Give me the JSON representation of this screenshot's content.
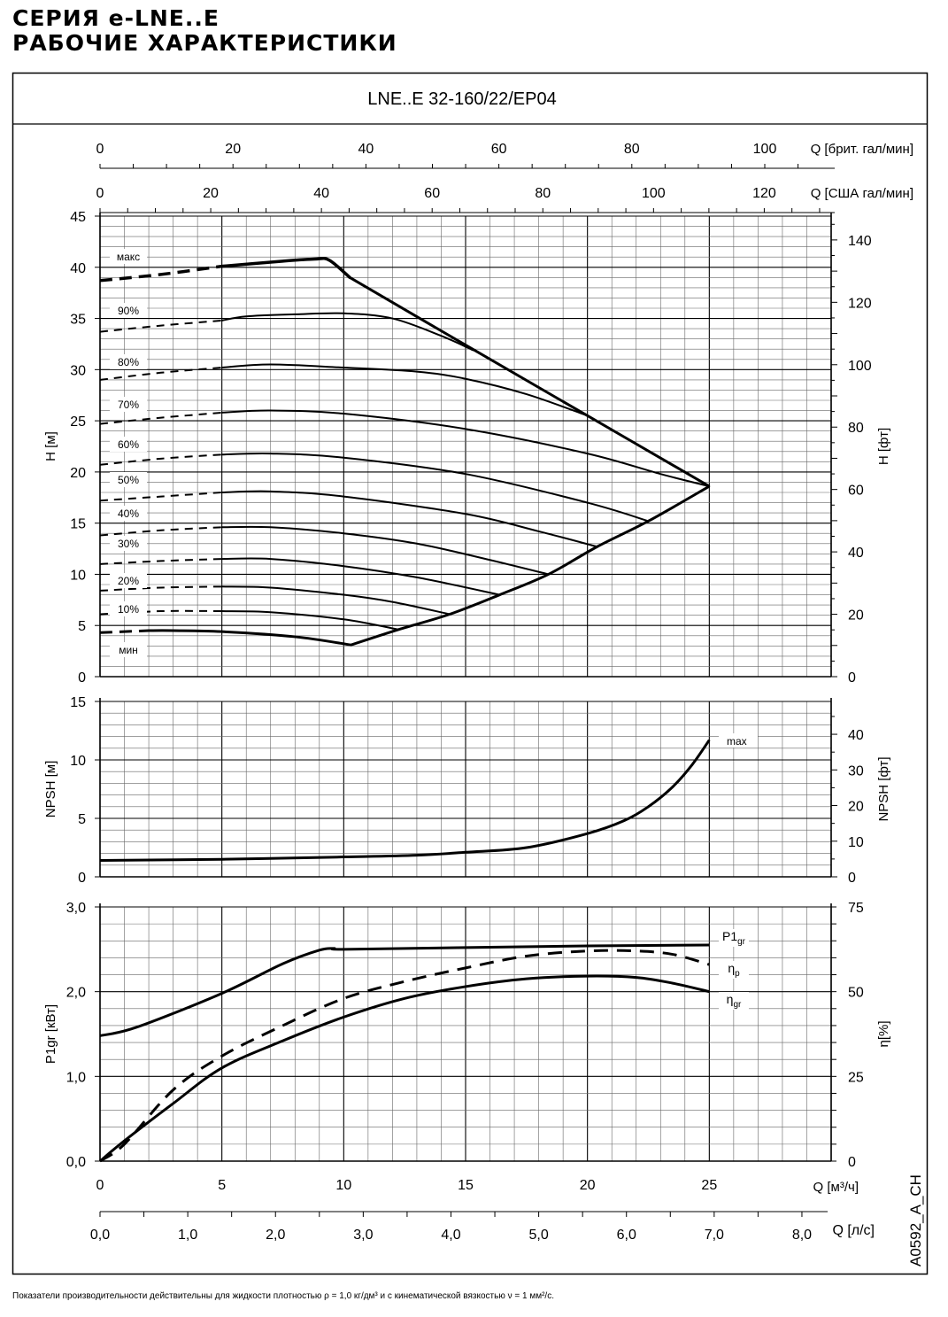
{
  "header": {
    "line1": "СЕРИЯ e-LNE..E",
    "line2": "РАБОЧИЕ ХАРАКТЕРИСТИКИ"
  },
  "model": "LNE..E 32-160/22/EP04",
  "code": "A0592_A_CH",
  "footnote": "Показатели производительности действительны для жидкости плотностью ρ = 1,0 кг/дм³ и с кинематической вязкостью ν = 1 мм²/с.",
  "axes": {
    "q_brit": {
      "label": "Q [брит. гал/мин]",
      "ticks": [
        "0",
        "20",
        "40",
        "60",
        "80",
        "100"
      ]
    },
    "q_us": {
      "label": "Q [США гал/мин]",
      "ticks": [
        "0",
        "20",
        "40",
        "60",
        "80",
        "100",
        "120"
      ]
    },
    "q_m3h": {
      "label": "Q [м³/ч]",
      "ticks": [
        "0",
        "5",
        "10",
        "15",
        "20",
        "25"
      ]
    },
    "q_ls": {
      "label": "Q [л/с]",
      "ticks": [
        "0,0",
        "1,0",
        "2,0",
        "3,0",
        "4,0",
        "5,0",
        "6,0",
        "7,0",
        "8,0"
      ]
    }
  },
  "chart_data": [
    {
      "type": "line",
      "ylabel": "H [м]",
      "ylabel_right": "H [фт]",
      "xlim": [
        0,
        30
      ],
      "ylim": [
        0,
        45
      ],
      "yticks": [
        "0",
        "5",
        "10",
        "15",
        "20",
        "25",
        "30",
        "35",
        "40",
        "45"
      ],
      "yticks_right": [
        "0",
        "20",
        "40",
        "60",
        "80",
        "100",
        "120",
        "140"
      ],
      "grid": true,
      "series": [
        {
          "name": "макс",
          "dashed_to": 5,
          "width": 3.5,
          "points": [
            [
              0,
              38.7
            ],
            [
              2.5,
              39.3
            ],
            [
              5,
              40.1
            ],
            [
              7.5,
              40.6
            ],
            [
              8.8,
              40.8
            ],
            [
              9.4,
              40.7
            ],
            [
              10.25,
              39.0
            ]
          ]
        },
        {
          "name": "90%",
          "dashed_to": 5,
          "points": [
            [
              0,
              33.7
            ],
            [
              2.5,
              34.3
            ],
            [
              5,
              34.8
            ],
            [
              6,
              35.2
            ],
            [
              8,
              35.4
            ],
            [
              10,
              35.5
            ],
            [
              12,
              35.0
            ],
            [
              14,
              33.3
            ],
            [
              15.3,
              31.9
            ]
          ]
        },
        {
          "name": "80%",
          "dashed_to": 5,
          "points": [
            [
              0,
              29.0
            ],
            [
              2.5,
              29.7
            ],
            [
              5,
              30.2
            ],
            [
              7,
              30.5
            ],
            [
              10,
              30.2
            ],
            [
              13,
              29.8
            ],
            [
              15,
              29.1
            ],
            [
              17.5,
              27.6
            ],
            [
              20,
              25.5
            ]
          ]
        },
        {
          "name": "70%",
          "dashed_to": 5,
          "points": [
            [
              0,
              24.7
            ],
            [
              2.5,
              25.3
            ],
            [
              5,
              25.8
            ],
            [
              7,
              26.0
            ],
            [
              10,
              25.7
            ],
            [
              15,
              24.2
            ],
            [
              20,
              21.8
            ],
            [
              23,
              19.8
            ],
            [
              25,
              18.6
            ]
          ]
        },
        {
          "name": "60%",
          "dashed_to": 5,
          "points": [
            [
              0,
              20.7
            ],
            [
              2.5,
              21.3
            ],
            [
              5,
              21.7
            ],
            [
              7,
              21.8
            ],
            [
              10,
              21.4
            ],
            [
              15,
              19.8
            ],
            [
              20,
              17.0
            ],
            [
              22.5,
              15.2
            ]
          ]
        },
        {
          "name": "50%",
          "dashed_to": 5,
          "points": [
            [
              0,
              17.2
            ],
            [
              2.5,
              17.6
            ],
            [
              5,
              18.0
            ],
            [
              7,
              18.1
            ],
            [
              10,
              17.6
            ],
            [
              15,
              15.9
            ],
            [
              18,
              14.2
            ],
            [
              20.4,
              12.7
            ]
          ]
        },
        {
          "name": "40%",
          "dashed_to": 5,
          "points": [
            [
              0,
              13.8
            ],
            [
              2.5,
              14.3
            ],
            [
              5,
              14.6
            ],
            [
              7,
              14.6
            ],
            [
              10,
              14.0
            ],
            [
              13,
              13.0
            ],
            [
              16,
              11.4
            ],
            [
              18.4,
              10.0
            ]
          ]
        },
        {
          "name": "30%",
          "dashed_to": 5,
          "points": [
            [
              0,
              11.0
            ],
            [
              2.5,
              11.3
            ],
            [
              5,
              11.5
            ],
            [
              7,
              11.5
            ],
            [
              10,
              10.8
            ],
            [
              13,
              9.7
            ],
            [
              16.4,
              8.0
            ]
          ]
        },
        {
          "name": "20%",
          "dashed_to": 5,
          "points": [
            [
              0,
              8.4
            ],
            [
              2.5,
              8.7
            ],
            [
              5,
              8.8
            ],
            [
              7,
              8.7
            ],
            [
              10,
              8.0
            ],
            [
              12,
              7.3
            ],
            [
              14.35,
              6.1
            ]
          ]
        },
        {
          "name": "10%",
          "dashed_to": 5,
          "points": [
            [
              0,
              6.1
            ],
            [
              2.5,
              6.4
            ],
            [
              5,
              6.4
            ],
            [
              7,
              6.3
            ],
            [
              10,
              5.6
            ],
            [
              12.25,
              4.6
            ]
          ]
        },
        {
          "name": "мин",
          "dashed_to": 2,
          "width": 3,
          "points": [
            [
              0,
              4.3
            ],
            [
              2,
              4.5
            ],
            [
              3,
              4.5
            ],
            [
              5,
              4.4
            ],
            [
              8,
              3.9
            ],
            [
              10.3,
              3.1
            ]
          ]
        }
      ],
      "limit_lines": [
        {
          "points": [
            [
              10.25,
              39.0
            ],
            [
              15,
              32.4
            ],
            [
              20,
              25.5
            ],
            [
              25,
              18.6
            ]
          ]
        },
        {
          "points": [
            [
              10.3,
              3.1
            ],
            [
              12.25,
              4.6
            ],
            [
              14.35,
              6.1
            ],
            [
              16.4,
              8.0
            ],
            [
              18.4,
              10.0
            ],
            [
              20.4,
              12.7
            ],
            [
              22.5,
              15.2
            ],
            [
              25,
              18.6
            ]
          ]
        }
      ]
    },
    {
      "type": "line",
      "ylabel": "NPSH [м]",
      "ylabel_right": "NPSH [фт]",
      "xlim": [
        0,
        30
      ],
      "ylim": [
        0,
        15
      ],
      "yticks": [
        "0",
        "5",
        "10",
        "15"
      ],
      "yticks_right": [
        "0",
        "10",
        "20",
        "30",
        "40"
      ],
      "grid": true,
      "series": [
        {
          "name": "max",
          "points": [
            [
              0,
              1.4
            ],
            [
              5,
              1.5
            ],
            [
              10,
              1.7
            ],
            [
              13,
              1.85
            ],
            [
              15,
              2.1
            ],
            [
              17.5,
              2.5
            ],
            [
              20,
              3.7
            ],
            [
              21.5,
              4.8
            ],
            [
              22.5,
              6.0
            ],
            [
              23.5,
              7.7
            ],
            [
              24.3,
              9.6
            ],
            [
              25,
              11.7
            ]
          ]
        }
      ]
    },
    {
      "type": "line",
      "ylabel": "P1gr [кВт]",
      "ylabel_right": "η[%]",
      "xlim": [
        0,
        30
      ],
      "ylim": [
        0,
        3.0
      ],
      "ylim_right": [
        0,
        75
      ],
      "yticks": [
        "0,0",
        "1,0",
        "2,0",
        "3,0"
      ],
      "yticks_right": [
        "0",
        "25",
        "50",
        "75"
      ],
      "grid": true,
      "series": [
        {
          "name": "P1",
          "sub": "gr",
          "axis": "left",
          "unit": "кВт",
          "points": [
            [
              0,
              1.48
            ],
            [
              1.5,
              1.58
            ],
            [
              5,
              1.98
            ],
            [
              7.5,
              2.33
            ],
            [
              9,
              2.49
            ],
            [
              9.6,
              2.51
            ],
            [
              10,
              2.5
            ],
            [
              15,
              2.52
            ],
            [
              20,
              2.54
            ],
            [
              25,
              2.55
            ]
          ]
        },
        {
          "name": "η",
          "sub": "p",
          "axis": "right",
          "unit": "%",
          "dashed": true,
          "points": [
            [
              0,
              0
            ],
            [
              1,
              5
            ],
            [
              3,
              21
            ],
            [
              5,
              31
            ],
            [
              7.5,
              40
            ],
            [
              10,
              48
            ],
            [
              12.5,
              53
            ],
            [
              15,
              57
            ],
            [
              17.5,
              60.5
            ],
            [
              20,
              62
            ],
            [
              22,
              62
            ],
            [
              23.5,
              61
            ],
            [
              25,
              58
            ]
          ]
        },
        {
          "name": "η",
          "sub": "gr",
          "axis": "right",
          "unit": "%",
          "points": [
            [
              0,
              0
            ],
            [
              1,
              6
            ],
            [
              3,
              17
            ],
            [
              5,
              27.5
            ],
            [
              7.5,
              35.5
            ],
            [
              10,
              42.5
            ],
            [
              12.5,
              48
            ],
            [
              15,
              51.5
            ],
            [
              17.5,
              53.8
            ],
            [
              20,
              54.6
            ],
            [
              22,
              54.2
            ],
            [
              23.5,
              52.5
            ],
            [
              25,
              50
            ]
          ]
        }
      ]
    }
  ]
}
